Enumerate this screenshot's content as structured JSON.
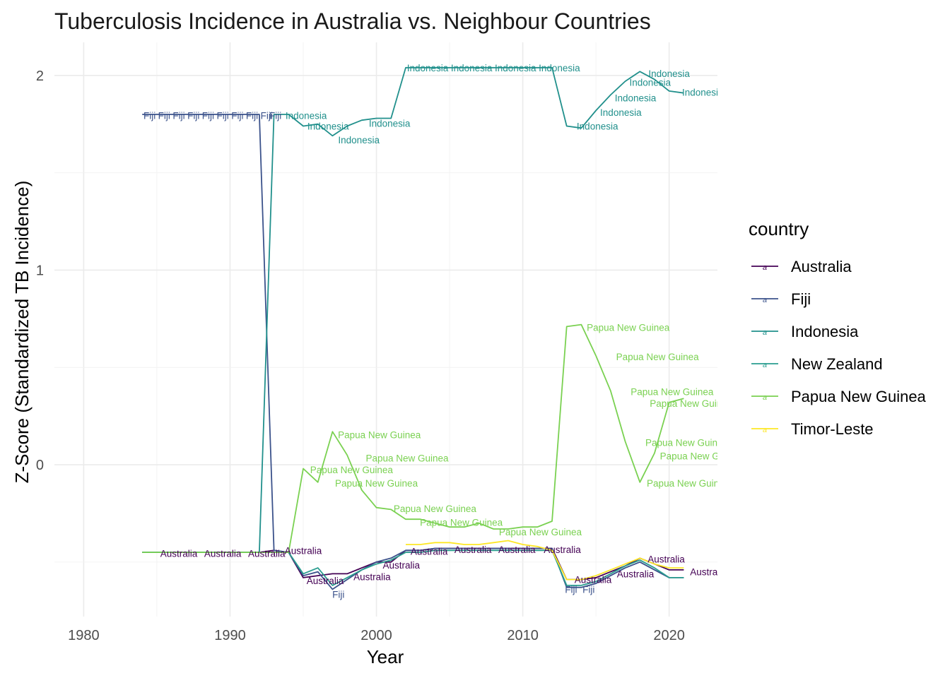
{
  "chart_data": {
    "type": "line",
    "title": "Tuberculosis Incidence in Australia vs. Neighbour Countries",
    "xlabel": "Year",
    "ylabel": "Z-Score (Standardized TB Incidence)",
    "xlim": [
      1978,
      2023.3
    ],
    "ylim": [
      -0.78,
      2.17
    ],
    "x_ticks": [
      1980,
      1990,
      2000,
      2010,
      2020
    ],
    "y_ticks": [
      0,
      1,
      2
    ],
    "grid": true,
    "legend": {
      "title": "country",
      "position": "right"
    },
    "series": [
      {
        "name": "Australia",
        "color": "#440154",
        "x": [
          1984,
          1985,
          1986,
          1987,
          1988,
          1989,
          1990,
          1991,
          1992,
          1993,
          1994,
          1995,
          1996,
          1997,
          1998,
          1999,
          2000,
          2001,
          2002,
          2003,
          2004,
          2005,
          2006,
          2007,
          2008,
          2009,
          2010,
          2011,
          2012,
          2013,
          2014,
          2015,
          2016,
          2017,
          2018,
          2019,
          2020,
          2021
        ],
        "y": [
          -0.45,
          -0.45,
          -0.45,
          -0.45,
          -0.45,
          -0.45,
          -0.45,
          -0.45,
          -0.45,
          -0.44,
          -0.45,
          -0.58,
          -0.57,
          -0.56,
          -0.56,
          -0.53,
          -0.5,
          -0.5,
          -0.44,
          -0.44,
          -0.43,
          -0.43,
          -0.43,
          -0.43,
          -0.43,
          -0.43,
          -0.43,
          -0.43,
          -0.43,
          -0.59,
          -0.59,
          -0.58,
          -0.55,
          -0.52,
          -0.48,
          -0.51,
          -0.54,
          -0.54
        ],
        "labels": [
          {
            "text": "Australia",
            "x": 1986.5,
            "y": -0.455
          },
          {
            "text": "Australia",
            "x": 1989.5,
            "y": -0.455
          },
          {
            "text": "Australia",
            "x": 1992.5,
            "y": -0.455
          },
          {
            "text": "Australia",
            "x": 1995.0,
            "y": -0.44
          },
          {
            "text": "Australia",
            "x": 1996.5,
            "y": -0.595
          },
          {
            "text": "Australia",
            "x": 1999.7,
            "y": -0.575
          },
          {
            "text": "Australia",
            "x": 2001.7,
            "y": -0.515
          },
          {
            "text": "Australia",
            "x": 2003.6,
            "y": -0.445
          },
          {
            "text": "Australia",
            "x": 2006.6,
            "y": -0.435
          },
          {
            "text": "Australia",
            "x": 2009.6,
            "y": -0.435
          },
          {
            "text": "Australia",
            "x": 2012.7,
            "y": -0.435
          },
          {
            "text": "Australia",
            "x": 2014.8,
            "y": -0.59
          },
          {
            "text": "Australia",
            "x": 2017.7,
            "y": -0.56
          },
          {
            "text": "Australia",
            "x": 2019.8,
            "y": -0.485
          },
          {
            "text": "Australia",
            "x": 2022.7,
            "y": -0.55
          }
        ]
      },
      {
        "name": "Fiji",
        "color": "#3b528b",
        "x": [
          1984,
          1985,
          1986,
          1987,
          1988,
          1989,
          1990,
          1991,
          1992,
          1993,
          1994,
          1995,
          1996,
          1997,
          1998,
          1999,
          2000,
          2001,
          2002,
          2003,
          2004,
          2005,
          2006,
          2007,
          2008,
          2009,
          2010,
          2011,
          2012,
          2013,
          2014,
          2015,
          2016,
          2017,
          2018,
          2019,
          2020,
          2021
        ],
        "y": [
          1.8,
          1.8,
          1.8,
          1.8,
          1.8,
          1.8,
          1.8,
          1.8,
          1.8,
          -0.44,
          -0.45,
          -0.57,
          -0.55,
          -0.64,
          -0.59,
          -0.54,
          -0.5,
          -0.48,
          -0.44,
          -0.44,
          -0.43,
          -0.43,
          -0.43,
          -0.43,
          -0.43,
          -0.43,
          -0.43,
          -0.43,
          -0.43,
          -0.63,
          -0.63,
          -0.61,
          -0.57,
          -0.53,
          -0.5,
          -0.54,
          -0.58,
          -0.58
        ],
        "labels": [
          {
            "text": "Fiji",
            "x": 1984.5,
            "y": 1.795
          },
          {
            "text": "Fiji",
            "x": 1985.5,
            "y": 1.795
          },
          {
            "text": "Fiji",
            "x": 1986.5,
            "y": 1.795
          },
          {
            "text": "Fiji",
            "x": 1987.5,
            "y": 1.795
          },
          {
            "text": "Fiji",
            "x": 1988.5,
            "y": 1.795
          },
          {
            "text": "Fiji",
            "x": 1989.5,
            "y": 1.795
          },
          {
            "text": "Fiji",
            "x": 1990.5,
            "y": 1.795
          },
          {
            "text": "Fiji",
            "x": 1991.5,
            "y": 1.795
          },
          {
            "text": "Fiji",
            "x": 1992.5,
            "y": 1.795
          },
          {
            "text": "Fiji",
            "x": 1993.1,
            "y": 1.795
          },
          {
            "text": "Fiji",
            "x": 1997.4,
            "y": -0.665
          },
          {
            "text": "Fiji",
            "x": 2013.3,
            "y": -0.64
          },
          {
            "text": "Fiji",
            "x": 2014.5,
            "y": -0.64
          }
        ]
      },
      {
        "name": "Indonesia",
        "color": "#21908c",
        "x": [
          1984,
          1985,
          1986,
          1987,
          1988,
          1989,
          1990,
          1991,
          1992,
          1993,
          1994,
          1995,
          1996,
          1997,
          1998,
          1999,
          2000,
          2001,
          2002,
          2003,
          2004,
          2005,
          2006,
          2007,
          2008,
          2009,
          2010,
          2011,
          2012,
          2013,
          2014,
          2015,
          2016,
          2017,
          2018,
          2019,
          2020,
          2021
        ],
        "y": [
          -0.45,
          -0.45,
          -0.45,
          -0.45,
          -0.45,
          -0.45,
          -0.45,
          -0.45,
          -0.45,
          1.8,
          1.8,
          1.74,
          1.75,
          1.69,
          1.74,
          1.77,
          1.78,
          1.78,
          2.04,
          2.04,
          2.04,
          2.04,
          2.04,
          2.04,
          2.04,
          2.04,
          2.04,
          2.04,
          2.04,
          1.74,
          1.73,
          1.82,
          1.9,
          1.97,
          2.02,
          1.98,
          1.92,
          1.91
        ],
        "labels": [
          {
            "text": "Indonesia",
            "x": 1995.2,
            "y": 1.795
          },
          {
            "text": "Indonesia",
            "x": 1996.7,
            "y": 1.74
          },
          {
            "text": "Indonesia",
            "x": 1998.8,
            "y": 1.67
          },
          {
            "text": "Indonesia",
            "x": 2000.9,
            "y": 1.755
          },
          {
            "text": "Indonesia",
            "x": 2003.5,
            "y": 2.04
          },
          {
            "text": "Indonesia",
            "x": 2006.5,
            "y": 2.04
          },
          {
            "text": "Indonesia",
            "x": 2009.5,
            "y": 2.04
          },
          {
            "text": "Indonesia",
            "x": 2012.5,
            "y": 2.04
          },
          {
            "text": "Indonesia",
            "x": 2015.1,
            "y": 1.74
          },
          {
            "text": "Indonesia",
            "x": 2016.7,
            "y": 1.81
          },
          {
            "text": "Indonesia",
            "x": 2017.7,
            "y": 1.885
          },
          {
            "text": "Indonesia",
            "x": 2018.7,
            "y": 1.965
          },
          {
            "text": "Indonesia",
            "x": 2020.0,
            "y": 2.01
          },
          {
            "text": "Indonesia",
            "x": 2022.3,
            "y": 1.915
          }
        ]
      },
      {
        "name": "New Zealand",
        "color": "#2a9d8f",
        "x": [
          1984,
          1985,
          1986,
          1987,
          1988,
          1989,
          1990,
          1991,
          1992,
          1993,
          1994,
          1995,
          1996,
          1997,
          1998,
          1999,
          2000,
          2001,
          2002,
          2003,
          2004,
          2005,
          2006,
          2007,
          2008,
          2009,
          2010,
          2011,
          2012,
          2013,
          2014,
          2015,
          2016,
          2017,
          2018,
          2019,
          2020,
          2021
        ],
        "y": [
          -0.45,
          -0.45,
          -0.45,
          -0.45,
          -0.45,
          -0.45,
          -0.45,
          -0.45,
          -0.45,
          -0.45,
          -0.45,
          -0.56,
          -0.53,
          -0.62,
          -0.58,
          -0.54,
          -0.51,
          -0.49,
          -0.45,
          -0.45,
          -0.44,
          -0.44,
          -0.44,
          -0.44,
          -0.44,
          -0.44,
          -0.44,
          -0.44,
          -0.44,
          -0.62,
          -0.62,
          -0.6,
          -0.56,
          -0.52,
          -0.49,
          -0.53,
          -0.58,
          -0.58
        ],
        "labels": []
      },
      {
        "name": "Papua New Guinea",
        "color": "#7ad151",
        "x": [
          1984,
          1985,
          1986,
          1987,
          1988,
          1989,
          1990,
          1991,
          1992,
          1993,
          1994,
          1995,
          1996,
          1997,
          1998,
          1999,
          2000,
          2001,
          2002,
          2003,
          2004,
          2005,
          2006,
          2007,
          2008,
          2009,
          2010,
          2011,
          2012,
          2013,
          2014,
          2015,
          2016,
          2017,
          2018,
          2019,
          2020,
          2021
        ],
        "y": [
          -0.45,
          -0.45,
          -0.45,
          -0.45,
          -0.45,
          -0.45,
          -0.45,
          -0.45,
          -0.45,
          -0.45,
          -0.45,
          -0.02,
          -0.09,
          0.17,
          0.05,
          -0.13,
          -0.22,
          -0.23,
          -0.28,
          -0.28,
          -0.3,
          -0.32,
          -0.32,
          -0.3,
          -0.33,
          -0.33,
          -0.32,
          -0.32,
          -0.29,
          0.71,
          0.72,
          0.56,
          0.38,
          0.12,
          -0.09,
          0.06,
          0.32,
          0.34
        ],
        "labels": [
          {
            "text": "Papua New Guinea",
            "x": 2000.2,
            "y": 0.155
          },
          {
            "text": "Papua New Guinea",
            "x": 2002.1,
            "y": 0.035
          },
          {
            "text": "Papua New Guinea",
            "x": 1998.3,
            "y": -0.025
          },
          {
            "text": "Papua New Guinea",
            "x": 2000.0,
            "y": -0.095
          },
          {
            "text": "Papua New Guinea",
            "x": 2004.0,
            "y": -0.225
          },
          {
            "text": "Papua New Guinea",
            "x": 2005.8,
            "y": -0.295
          },
          {
            "text": "Papua New Guinea",
            "x": 2011.2,
            "y": -0.345
          },
          {
            "text": "Papua New Guinea",
            "x": 2017.2,
            "y": 0.705
          },
          {
            "text": "Papua New Guinea",
            "x": 2019.2,
            "y": 0.555
          },
          {
            "text": "Papua New Guinea",
            "x": 2020.2,
            "y": 0.375
          },
          {
            "text": "Papua New Guinea",
            "x": 2021.5,
            "y": 0.315
          },
          {
            "text": "Papua New Guinea",
            "x": 2021.2,
            "y": 0.115
          },
          {
            "text": "Papua New Guinea",
            "x": 2022.2,
            "y": 0.045
          },
          {
            "text": "Papua New Guinea",
            "x": 2021.3,
            "y": -0.095
          }
        ]
      },
      {
        "name": "Timor-Leste",
        "color": "#fde725",
        "x": [
          2002,
          2003,
          2004,
          2005,
          2006,
          2007,
          2008,
          2009,
          2010,
          2011,
          2012,
          2013,
          2014,
          2015,
          2016,
          2017,
          2018,
          2019,
          2020,
          2021
        ],
        "y": [
          -0.41,
          -0.41,
          -0.4,
          -0.4,
          -0.41,
          -0.41,
          -0.4,
          -0.39,
          -0.41,
          -0.42,
          -0.44,
          -0.59,
          -0.59,
          -0.57,
          -0.54,
          -0.51,
          -0.48,
          -0.51,
          -0.53,
          -0.53
        ],
        "labels": []
      }
    ]
  }
}
